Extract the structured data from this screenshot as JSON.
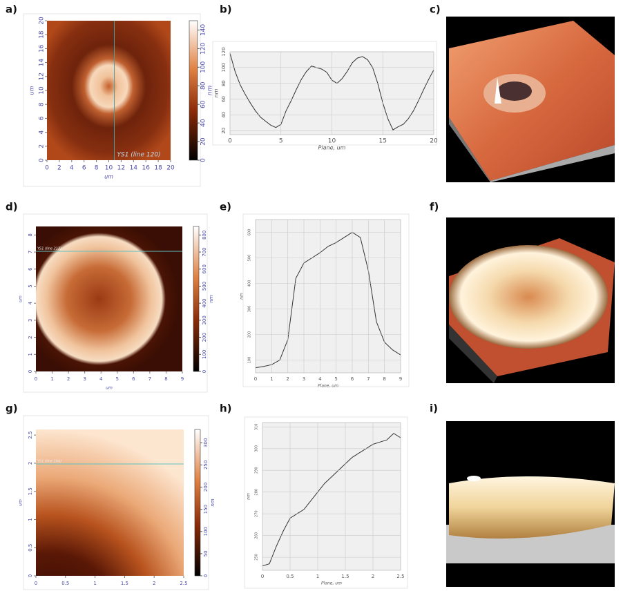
{
  "panels": [
    "a)",
    "b)",
    "c)",
    "d)",
    "e)",
    "f)",
    "g)",
    "h)",
    "i)"
  ],
  "chart_data": [
    {
      "type": "heatmap",
      "xlabel": "um",
      "ylabel": "um",
      "colorbar_label": "nm",
      "annotation": "YS1 (line 120)",
      "xlim": [
        0,
        20
      ],
      "xticks": [
        0,
        2,
        4,
        6,
        8,
        10,
        12,
        14,
        16,
        18,
        20
      ],
      "ylim": [
        0,
        20
      ],
      "yticks": [
        0,
        2,
        4,
        6,
        8,
        10,
        12,
        14,
        16,
        18,
        20
      ],
      "clim": [
        0,
        150
      ],
      "cticks": [
        0,
        20,
        40,
        60,
        80,
        100,
        120,
        140
      ]
    },
    {
      "type": "line",
      "xlabel": "Plane, um",
      "ylabel": "nm",
      "color": "#333333",
      "grid": true,
      "xlim": [
        0,
        20
      ],
      "xticks": [
        0,
        5,
        10,
        15,
        20
      ],
      "ylim": [
        15,
        120
      ],
      "yticks": [
        20,
        40,
        60,
        80,
        100,
        120
      ],
      "x": [
        0,
        0.5,
        1,
        1.5,
        2,
        2.5,
        3,
        3.5,
        4,
        4.5,
        5,
        5.5,
        6,
        6.5,
        7,
        7.5,
        8,
        8.5,
        9,
        9.5,
        10,
        10.5,
        11,
        11.5,
        12,
        12.5,
        13,
        13.5,
        14,
        14.5,
        15,
        15.5,
        16,
        16.5,
        17,
        17.5,
        18,
        18.5,
        19,
        19.5,
        20
      ],
      "values": [
        118,
        95,
        78,
        66,
        55,
        45,
        37,
        32,
        27,
        24,
        28,
        45,
        58,
        72,
        85,
        95,
        102,
        100,
        98,
        94,
        84,
        80,
        86,
        95,
        106,
        112,
        114,
        110,
        100,
        80,
        55,
        35,
        21,
        25,
        28,
        35,
        45,
        58,
        72,
        85,
        97
      ]
    },
    {
      "type": "heatmap",
      "xlabel": "um",
      "ylabel": "um",
      "colorbar_label": "nm",
      "annotation": "YS1 (line 213)",
      "xlim": [
        0,
        9
      ],
      "xticks": [
        0,
        1,
        2,
        3,
        4,
        5,
        6,
        7,
        8,
        9
      ],
      "ylim": [
        0,
        8.5
      ],
      "yticks": [
        0,
        1,
        2,
        3,
        4,
        5,
        6,
        7,
        8
      ],
      "clim": [
        0,
        850
      ],
      "cticks": [
        0,
        100,
        200,
        300,
        400,
        500,
        600,
        700,
        800
      ]
    },
    {
      "type": "line",
      "xlabel": "Plane, um",
      "ylabel": "nm",
      "color": "#333333",
      "grid": true,
      "xlim": [
        0,
        9
      ],
      "xticks": [
        0,
        1,
        2,
        3,
        4,
        5,
        6,
        7,
        8,
        9
      ],
      "ylim": [
        50,
        650
      ],
      "yticks": [
        100,
        200,
        300,
        400,
        500,
        600
      ],
      "x": [
        0,
        0.5,
        1,
        1.5,
        2,
        2.5,
        3,
        3.5,
        4,
        4.5,
        5,
        5.5,
        6,
        6.5,
        7,
        7.5,
        8,
        8.5,
        9
      ],
      "values": [
        70,
        75,
        82,
        100,
        180,
        420,
        480,
        500,
        520,
        545,
        560,
        580,
        600,
        580,
        450,
        250,
        170,
        140,
        120
      ]
    },
    {
      "type": "heatmap",
      "xlabel": "um",
      "ylabel": "um",
      "colorbar_label": "nm",
      "annotation": "YS1 (line 184)",
      "xlim": [
        0,
        2.5
      ],
      "xticks": [
        0,
        0.5,
        1,
        1.5,
        2,
        2.5
      ],
      "ylim": [
        0,
        2.6
      ],
      "yticks": [
        0,
        0.5,
        1,
        1.5,
        2,
        2.5
      ],
      "clim": [
        0,
        330
      ],
      "cticks": [
        0,
        50,
        100,
        150,
        200,
        250,
        300
      ]
    },
    {
      "type": "line",
      "xlabel": "Plane, um",
      "ylabel": "nm",
      "color": "#333333",
      "grid": true,
      "xlim": [
        0,
        2.5
      ],
      "xticks": [
        0,
        0.5,
        1,
        1.5,
        2,
        2.5
      ],
      "ylim": [
        244,
        312
      ],
      "yticks": [
        250,
        260,
        270,
        280,
        290,
        300,
        310
      ],
      "x": [
        0,
        0.125,
        0.25,
        0.375,
        0.5,
        0.625,
        0.75,
        0.875,
        1,
        1.125,
        1.25,
        1.375,
        1.5,
        1.625,
        1.75,
        1.875,
        2,
        2.125,
        2.25,
        2.375,
        2.5
      ],
      "values": [
        246,
        247,
        255,
        262,
        268,
        270,
        272,
        276,
        280,
        284,
        287,
        290,
        293,
        296,
        298,
        300,
        302,
        303,
        304,
        307,
        305
      ]
    }
  ]
}
